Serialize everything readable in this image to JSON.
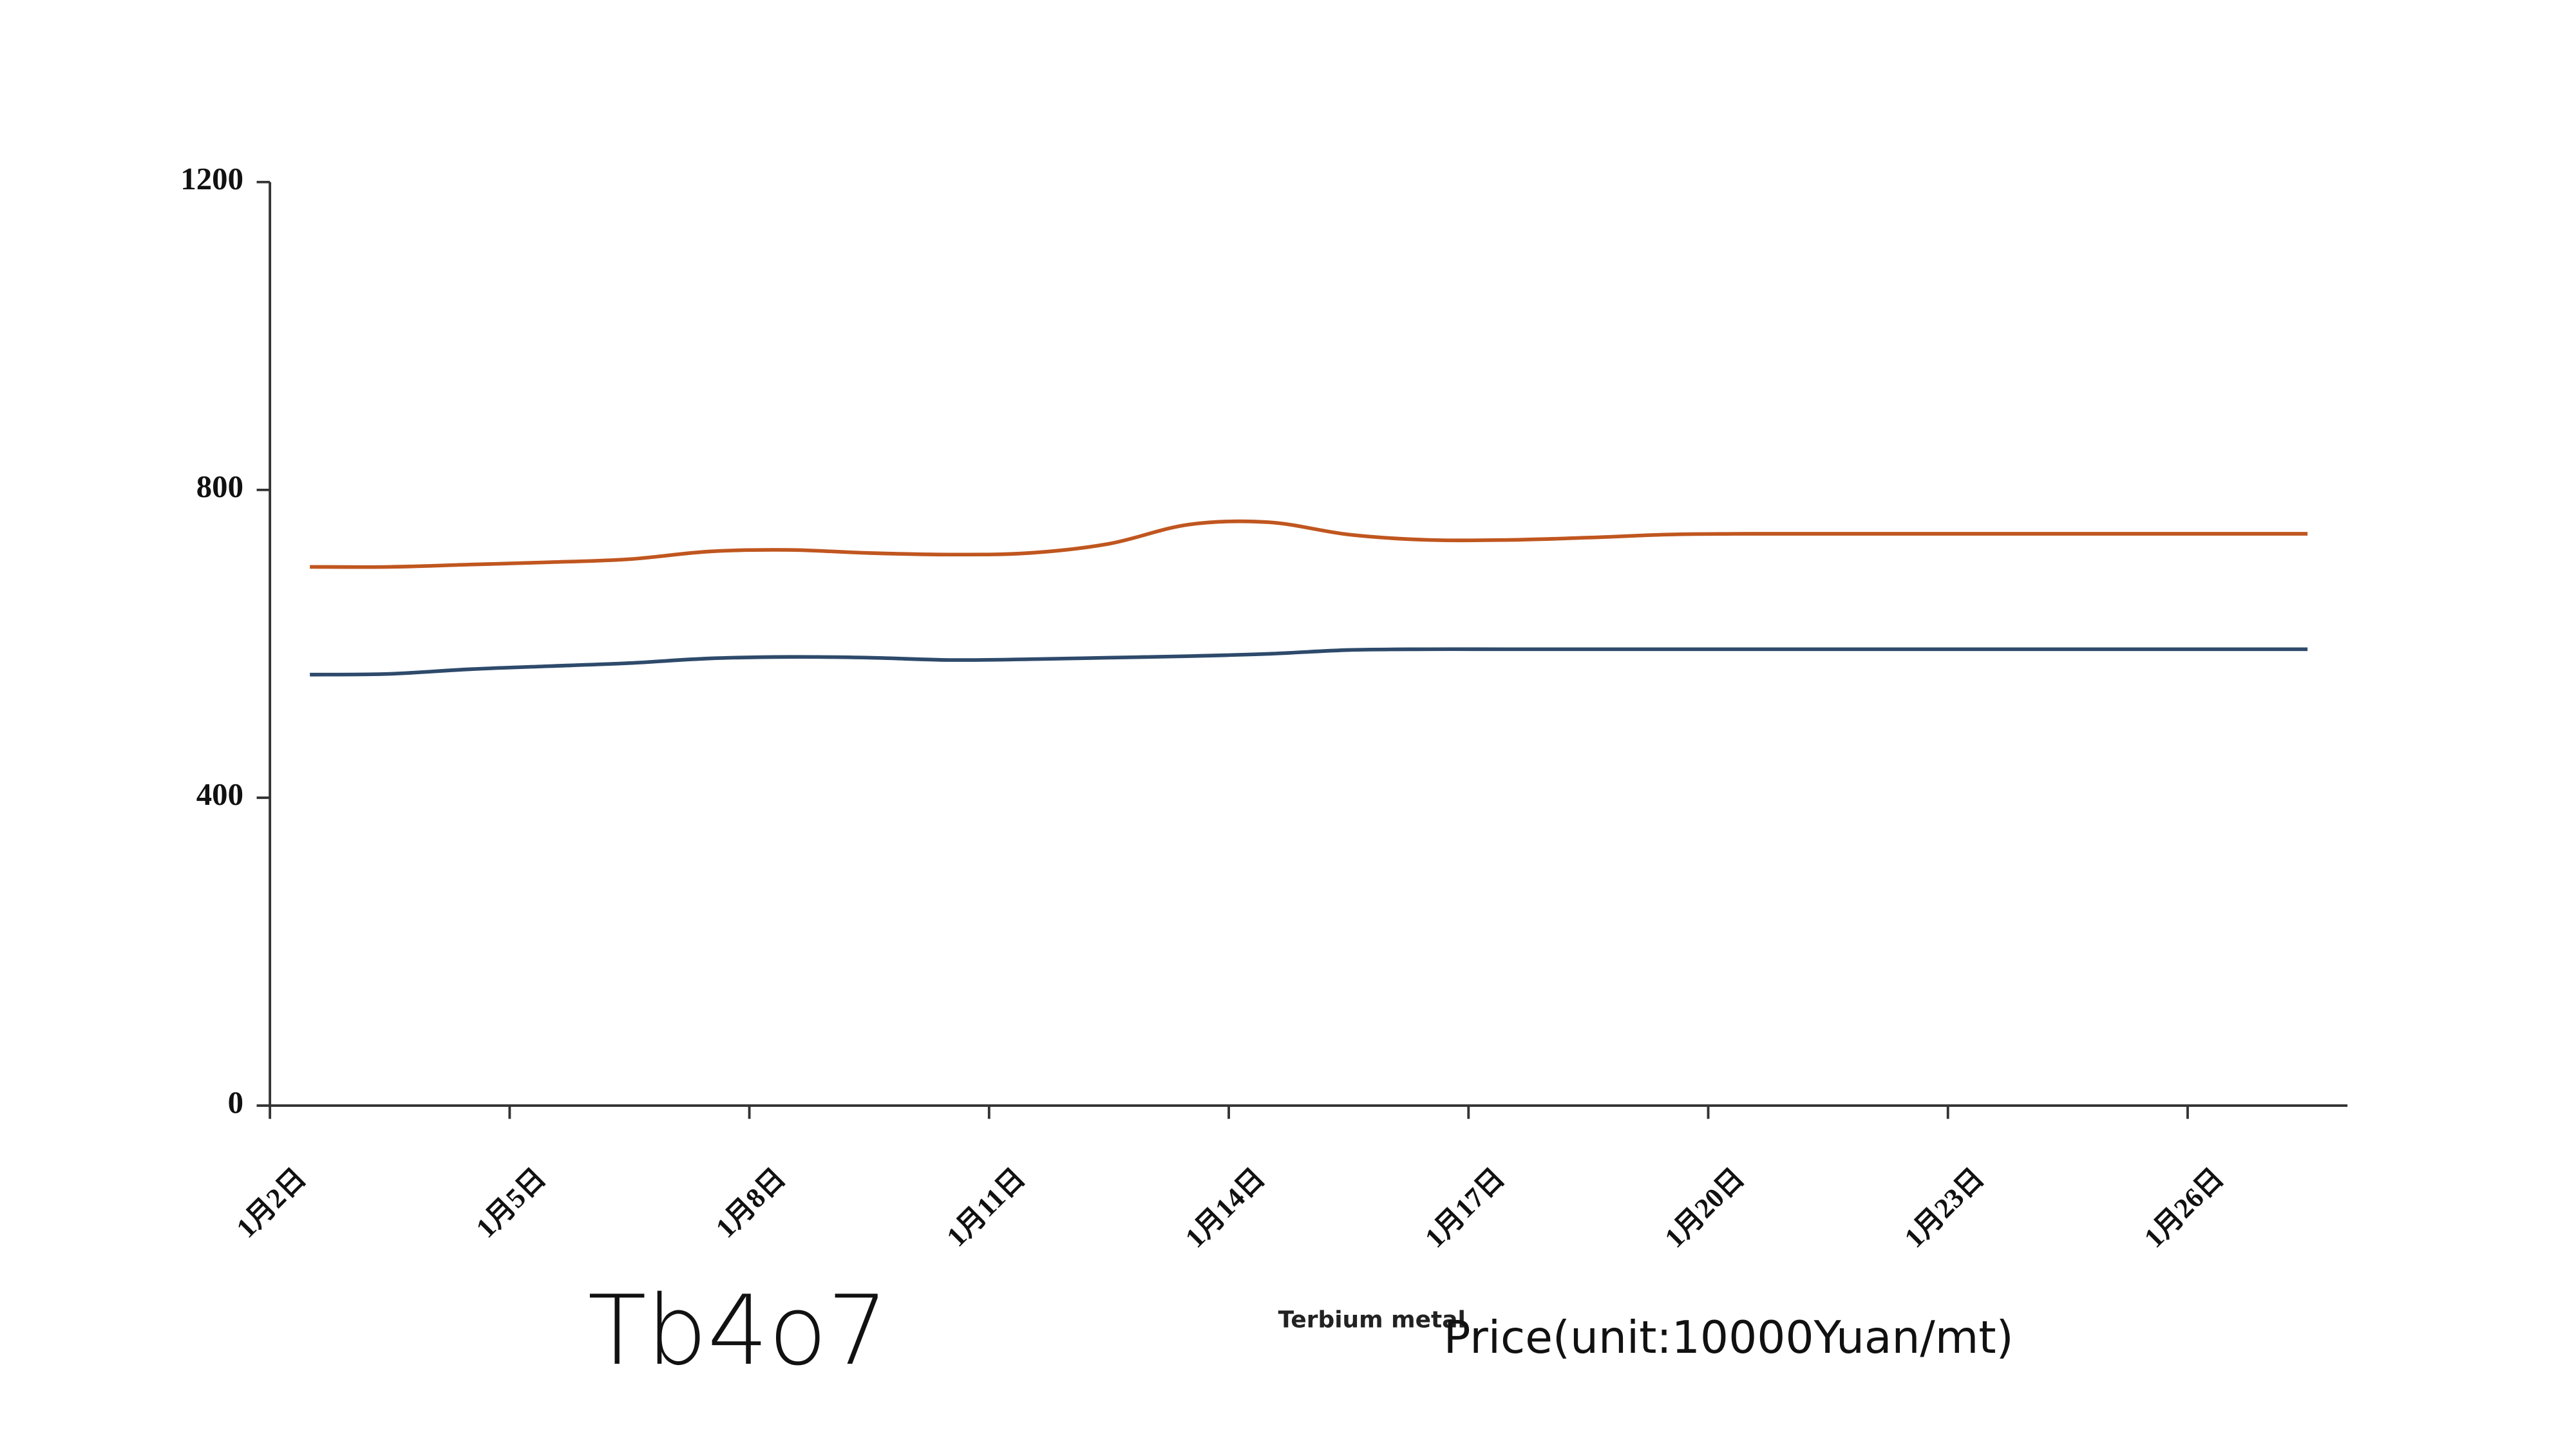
{
  "chart_data": {
    "type": "line",
    "categories": [
      "1月2日",
      null,
      null,
      "1月5日",
      null,
      null,
      "1月8日",
      null,
      null,
      "1月11日",
      null,
      null,
      "1月14日",
      null,
      null,
      "1月17日",
      null,
      null,
      "1月20日",
      null,
      null,
      "1月23日",
      null,
      null,
      "1月26日",
      null
    ],
    "series": [
      {
        "name": "Tb4o7",
        "color": "#2e4a6b",
        "values": [
          560,
          561,
          567,
          571,
          575,
          581,
          583,
          582,
          579,
          580,
          582,
          584,
          587,
          592,
          593,
          593,
          593,
          593,
          593,
          593,
          593,
          593,
          593,
          593,
          593,
          593
        ]
      },
      {
        "name": "Terbium metal",
        "color": "#c0561f",
        "values": [
          700,
          700,
          703,
          706,
          710,
          720,
          722,
          718,
          716,
          718,
          730,
          755,
          758,
          742,
          735,
          735,
          738,
          742,
          743,
          743,
          743,
          743,
          743,
          743,
          743,
          743
        ]
      }
    ],
    "y_label": "Price(unit:10000Yuan/mt)",
    "ylim": [
      0,
      1200
    ],
    "yticks": [
      0,
      400,
      800,
      1200
    ],
    "grid": false
  }
}
